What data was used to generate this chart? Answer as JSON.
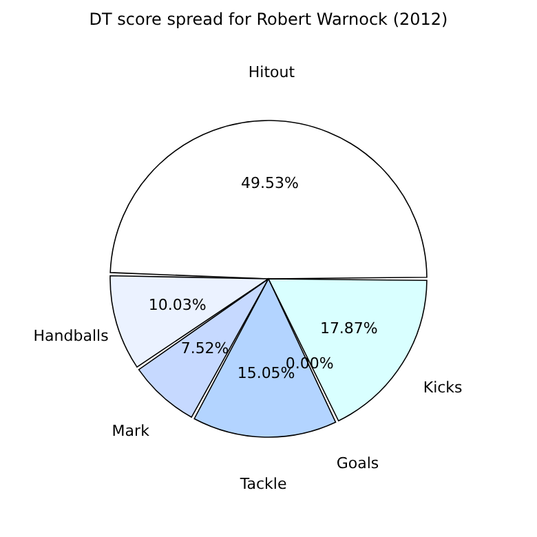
{
  "chart_data": {
    "type": "pie",
    "title": "DT score spread for Robert Warnock (2012)",
    "categories": [
      "Hitout",
      "Handballs",
      "Mark",
      "Tackle",
      "Goals",
      "Kicks"
    ],
    "values": [
      49.53,
      10.03,
      7.52,
      15.05,
      0.0,
      17.87
    ],
    "value_labels": [
      "49.53%",
      "10.03%",
      "7.52%",
      "15.05%",
      "0.00%",
      "17.87%"
    ],
    "colors": [
      "#ffffff",
      "#ebf2ff",
      "#c6d9ff",
      "#b3d4ff",
      "#9fc4ff",
      "#d9ffff"
    ]
  }
}
